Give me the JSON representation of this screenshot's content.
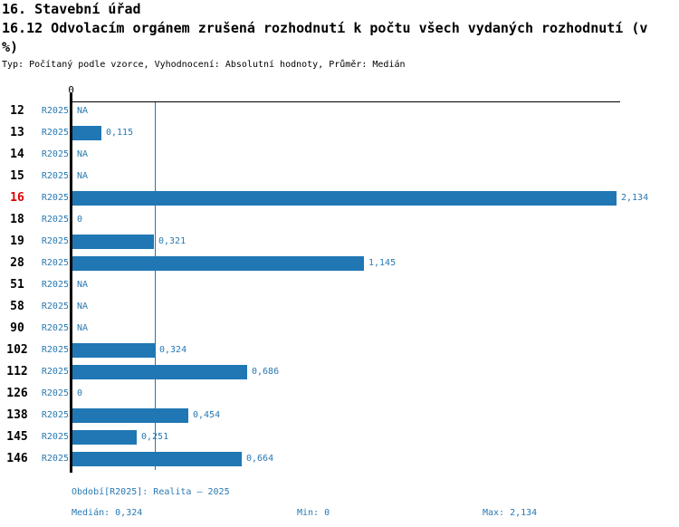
{
  "chart_data": {
    "type": "bar",
    "orientation": "horizontal",
    "title": "16. Stavební úřad",
    "subtitle": "16.12 Odvolacím orgánem zrušená rozhodnutí k počtu všech vydaných rozhodnutí (v %)",
    "meta": "Typ: Počítaný podle vzorce, Vyhodnocení: Absolutní hodnoty, Průměr: Medián",
    "period_label": "R2025",
    "categories": [
      "12",
      "13",
      "14",
      "15",
      "16",
      "18",
      "19",
      "28",
      "51",
      "58",
      "90",
      "102",
      "112",
      "126",
      "138",
      "145",
      "146"
    ],
    "values": [
      null,
      0.115,
      null,
      null,
      2.134,
      0,
      0.321,
      1.145,
      null,
      null,
      null,
      0.324,
      0.686,
      0,
      0.454,
      0.251,
      0.664
    ],
    "value_labels": [
      "NA",
      "0,115",
      "NA",
      "NA",
      "2,134",
      "0",
      "0,321",
      "1,145",
      "NA",
      "NA",
      "NA",
      "0,324",
      "0,686",
      "0",
      "0,454",
      "0,251",
      "0,664"
    ],
    "highlighted_category": "16",
    "axis": {
      "zero_label": "0",
      "xmin": 0,
      "xmax": 2.15,
      "median_reference_line": 0.324,
      "grid": false
    },
    "stats": {
      "median": 0.324,
      "min": 0,
      "max": 2.134
    },
    "colors": {
      "bar": "#2077b4",
      "blue_text": "#2879b3",
      "highlight_red": "#dd0000",
      "axis_black": "#000000"
    }
  },
  "footer": {
    "period_info": "Období[R2025]: Realita – 2025",
    "median_label": "Medián: 0,324",
    "min_label": "Min: 0",
    "max_label": "Max: 2,134"
  }
}
